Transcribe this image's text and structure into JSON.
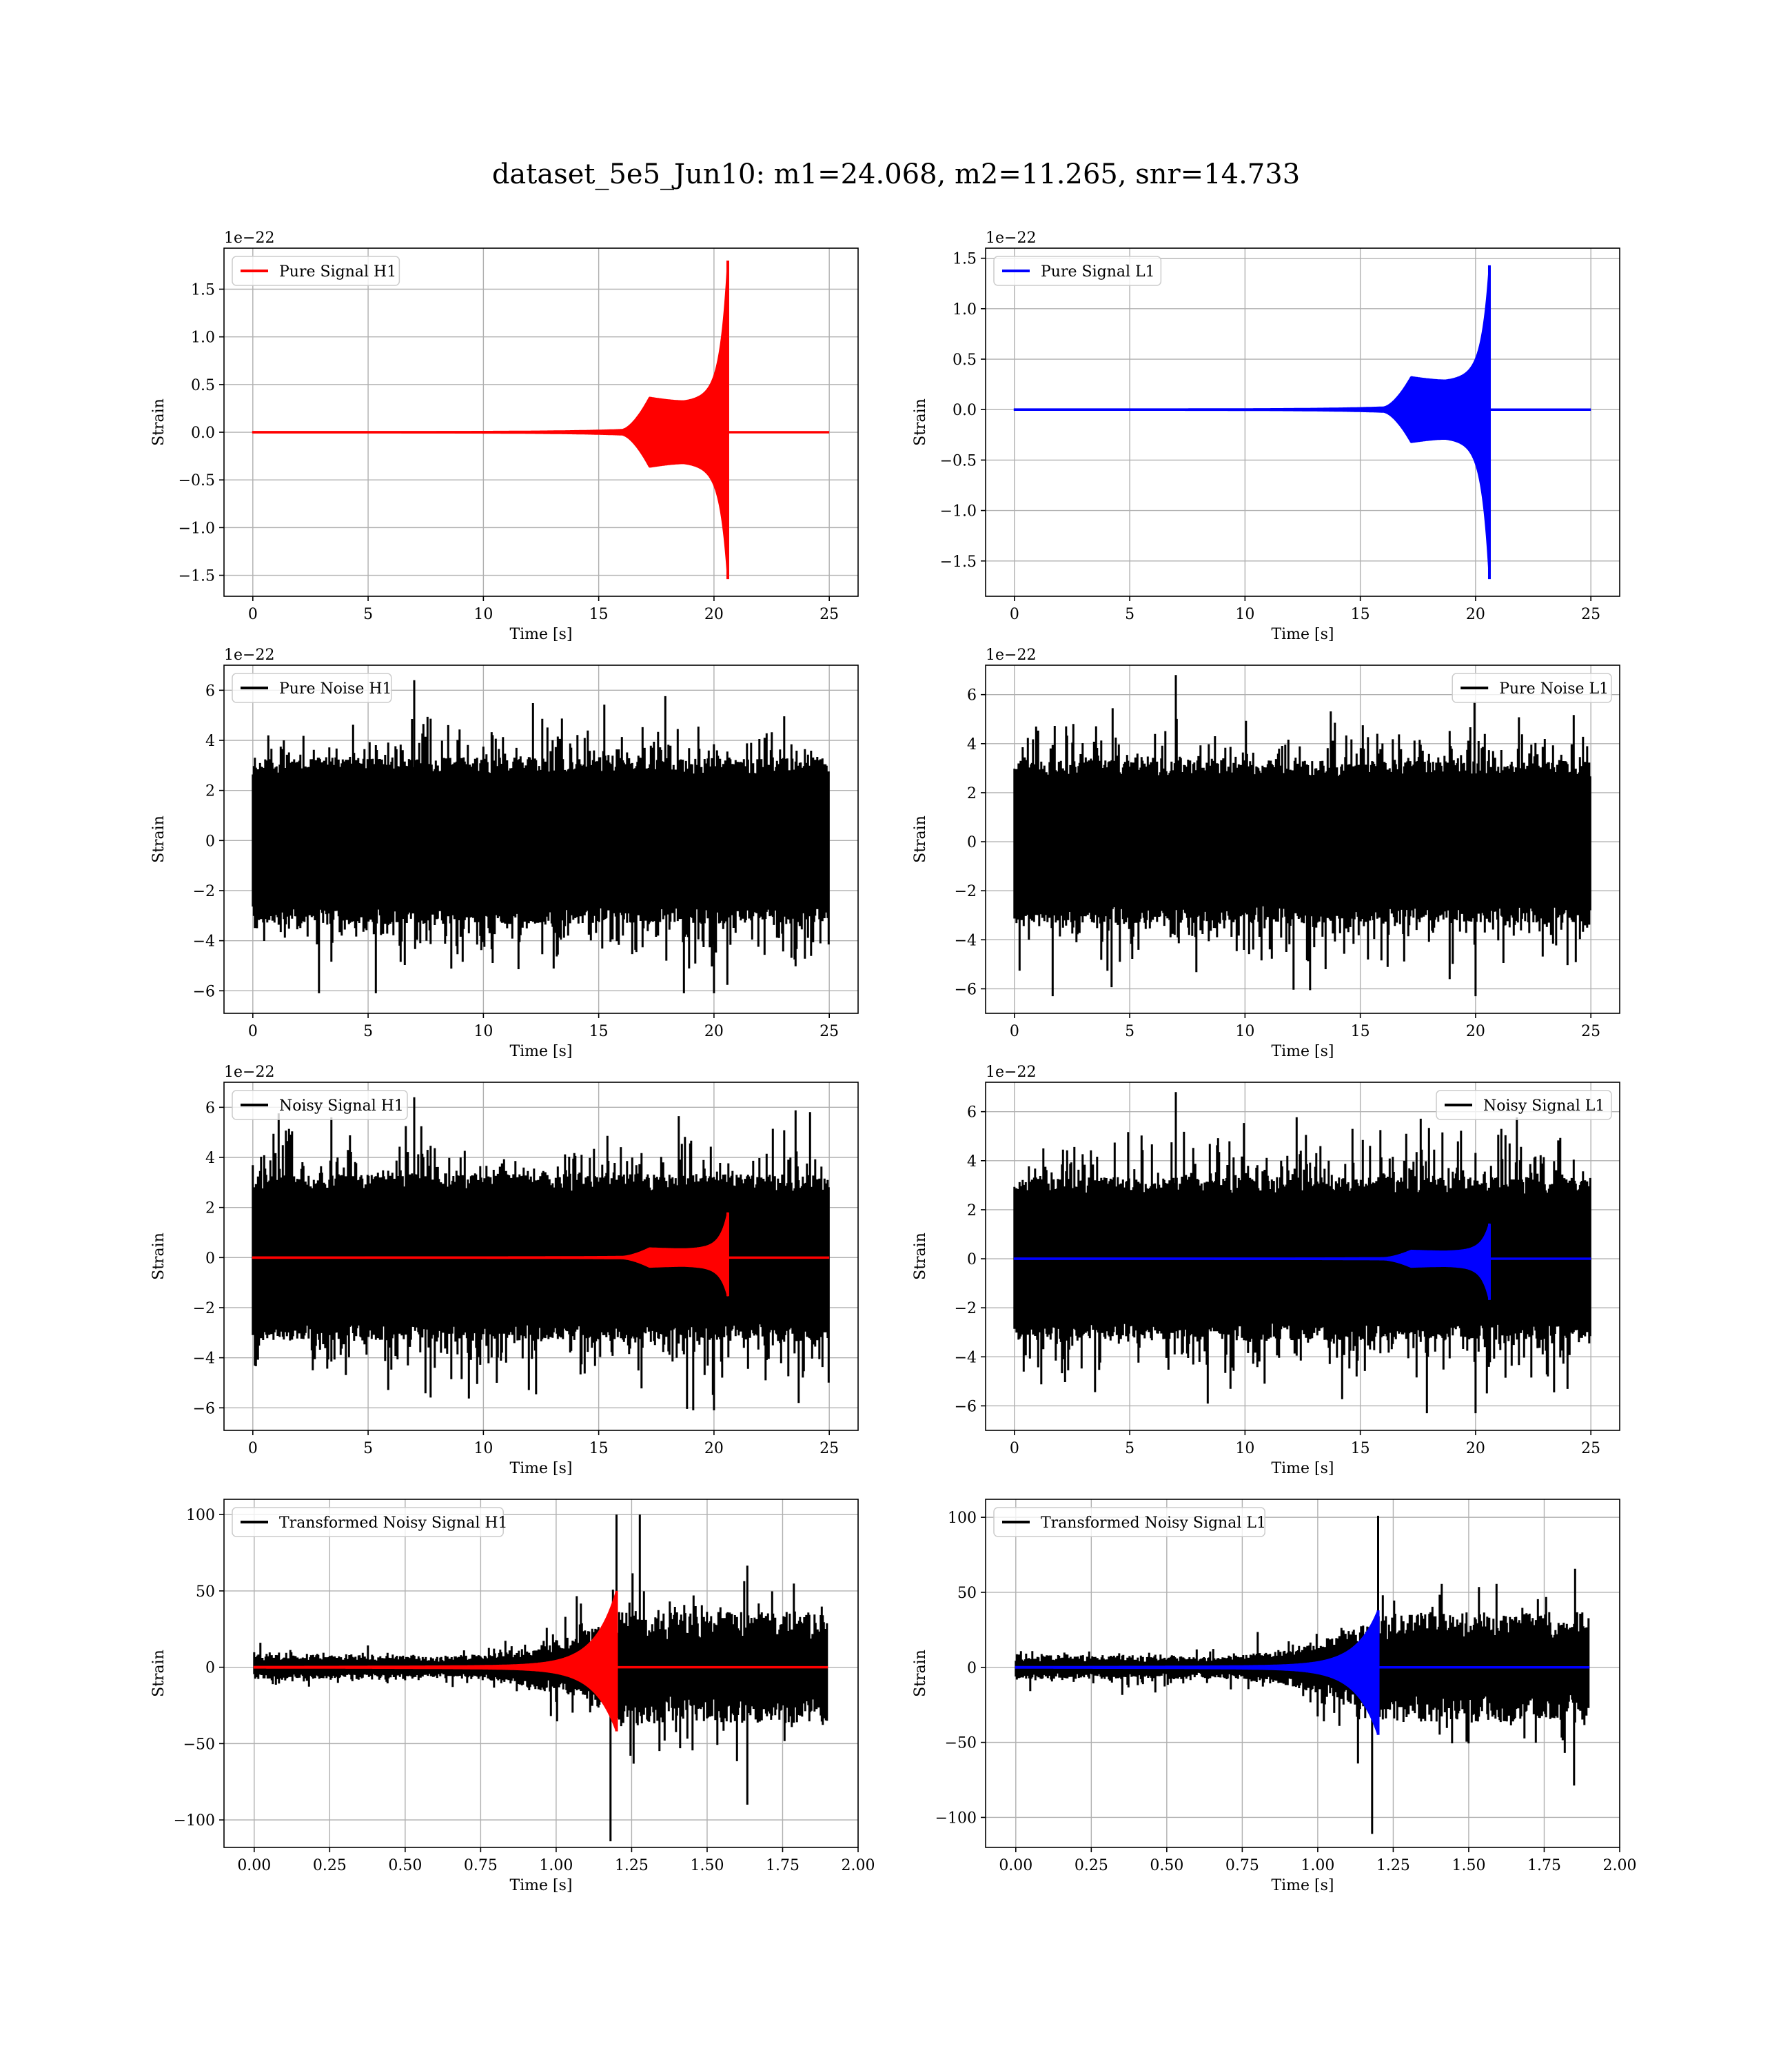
{
  "figure": {
    "title": "dataset_5e5_Jun10: m1=24.068, m2=11.265, snr=14.733"
  },
  "colors": {
    "h1_signal": "#ff0000",
    "l1_signal": "#0000ff",
    "noise": "#000000"
  },
  "chart_data": [
    {
      "type": "line",
      "id": "pure-signal-h1",
      "xlabel": "Time [s]",
      "ylabel": "Strain",
      "offset_label": "1e−22",
      "xlim": [
        -1.25,
        26.25
      ],
      "ylim": [
        -1.72,
        1.93
      ],
      "xticks": [
        0,
        5,
        10,
        15,
        20,
        25
      ],
      "xtick_labels": [
        "0",
        "5",
        "10",
        "15",
        "20",
        "25"
      ],
      "yticks": [
        -1.5,
        -1.0,
        -0.5,
        0.0,
        0.5,
        1.0,
        1.5
      ],
      "ytick_labels": [
        "−1.5",
        "−1.0",
        "−0.5",
        "0.0",
        "0.5",
        "1.0",
        "1.5"
      ],
      "legend": {
        "loc": "upper left",
        "entries": [
          {
            "label": "Pure Signal H1",
            "color": "#ff0000"
          }
        ]
      },
      "series": [
        {
          "name": "Pure Signal H1",
          "color": "#ff0000",
          "kind": "chirp",
          "t_start": 0,
          "t_end": 25,
          "t_merge": 20.6,
          "peak_pos": 1.8,
          "peak_neg": -1.54,
          "plateau": 0.36,
          "plateau_start": 17.2
        }
      ]
    },
    {
      "type": "line",
      "id": "pure-signal-l1",
      "xlabel": "Time [s]",
      "ylabel": "Strain",
      "offset_label": "1e−22",
      "xlim": [
        -1.25,
        26.25
      ],
      "ylim": [
        -1.85,
        1.6
      ],
      "xticks": [
        0,
        5,
        10,
        15,
        20,
        25
      ],
      "xtick_labels": [
        "0",
        "5",
        "10",
        "15",
        "20",
        "25"
      ],
      "yticks": [
        -1.5,
        -1.0,
        -0.5,
        0.0,
        0.5,
        1.0,
        1.5
      ],
      "ytick_labels": [
        "−1.5",
        "−1.0",
        "−0.5",
        "0.0",
        "0.5",
        "1.0",
        "1.5"
      ],
      "legend": {
        "loc": "upper left",
        "entries": [
          {
            "label": "Pure Signal L1",
            "color": "#0000ff"
          }
        ]
      },
      "series": [
        {
          "name": "Pure Signal L1",
          "color": "#0000ff",
          "kind": "chirp",
          "t_start": 0,
          "t_end": 25,
          "t_merge": 20.6,
          "peak_pos": 1.43,
          "peak_neg": -1.68,
          "plateau": 0.32,
          "plateau_start": 17.2
        }
      ]
    },
    {
      "type": "line",
      "id": "pure-noise-h1",
      "xlabel": "Time [s]",
      "ylabel": "Strain",
      "offset_label": "1e−22",
      "xlim": [
        -1.25,
        26.25
      ],
      "ylim": [
        -6.9,
        7.0
      ],
      "xticks": [
        0,
        5,
        10,
        15,
        20,
        25
      ],
      "xtick_labels": [
        "0",
        "5",
        "10",
        "15",
        "20",
        "25"
      ],
      "yticks": [
        -6,
        -4,
        -2,
        0,
        2,
        4,
        6
      ],
      "ytick_labels": [
        "−6",
        "−4",
        "−2",
        "0",
        "2",
        "4",
        "6"
      ],
      "legend": {
        "loc": "upper left",
        "entries": [
          {
            "label": "Pure Noise H1",
            "color": "#000000"
          }
        ]
      },
      "series": [
        {
          "name": "Pure Noise H1",
          "color": "#000000",
          "kind": "noise",
          "t_start": 0,
          "t_end": 25,
          "max": 6.4,
          "min": -6.1,
          "band": 3.2
        }
      ]
    },
    {
      "type": "line",
      "id": "pure-noise-l1",
      "xlabel": "Time [s]",
      "ylabel": "Strain",
      "offset_label": "1e−22",
      "xlim": [
        -1.25,
        26.25
      ],
      "ylim": [
        -7.0,
        7.2
      ],
      "xticks": [
        0,
        5,
        10,
        15,
        20,
        25
      ],
      "xtick_labels": [
        "0",
        "5",
        "10",
        "15",
        "20",
        "25"
      ],
      "yticks": [
        -6,
        -4,
        -2,
        0,
        2,
        4,
        6
      ],
      "ytick_labels": [
        "−6",
        "−4",
        "−2",
        "0",
        "2",
        "4",
        "6"
      ],
      "legend": {
        "loc": "upper right",
        "entries": [
          {
            "label": "Pure Noise L1",
            "color": "#000000"
          }
        ]
      },
      "series": [
        {
          "name": "Pure Noise L1",
          "color": "#000000",
          "kind": "noise",
          "t_start": 0,
          "t_end": 25,
          "max": 6.8,
          "min": -6.3,
          "band": 3.2
        }
      ]
    },
    {
      "type": "line",
      "id": "noisy-signal-h1",
      "xlabel": "Time [s]",
      "ylabel": "Strain",
      "offset_label": "1e−22",
      "xlim": [
        -1.25,
        26.25
      ],
      "ylim": [
        -6.9,
        7.0
      ],
      "xticks": [
        0,
        5,
        10,
        15,
        20,
        25
      ],
      "xtick_labels": [
        "0",
        "5",
        "10",
        "15",
        "20",
        "25"
      ],
      "yticks": [
        -6,
        -4,
        -2,
        0,
        2,
        4,
        6
      ],
      "ytick_labels": [
        "−6",
        "−4",
        "−2",
        "0",
        "2",
        "4",
        "6"
      ],
      "legend": {
        "loc": "upper left",
        "entries": [
          {
            "label": "Noisy Signal H1",
            "color": "#000000"
          }
        ]
      },
      "series": [
        {
          "name": "Noisy Signal H1",
          "color": "#000000",
          "kind": "noise",
          "t_start": 0,
          "t_end": 25,
          "max": 6.4,
          "min": -6.1,
          "band": 3.2
        },
        {
          "color": "#ff0000",
          "kind": "chirp",
          "t_start": 0,
          "t_end": 25,
          "t_merge": 20.6,
          "peak_pos": 1.8,
          "peak_neg": -1.54,
          "plateau": 0.36,
          "plateau_start": 17.2
        }
      ]
    },
    {
      "type": "line",
      "id": "noisy-signal-l1",
      "xlabel": "Time [s]",
      "ylabel": "Strain",
      "offset_label": "1e−22",
      "xlim": [
        -1.25,
        26.25
      ],
      "ylim": [
        -7.0,
        7.2
      ],
      "xticks": [
        0,
        5,
        10,
        15,
        20,
        25
      ],
      "xtick_labels": [
        "0",
        "5",
        "10",
        "15",
        "20",
        "25"
      ],
      "yticks": [
        -6,
        -4,
        -2,
        0,
        2,
        4,
        6
      ],
      "ytick_labels": [
        "−6",
        "−4",
        "−2",
        "0",
        "2",
        "4",
        "6"
      ],
      "legend": {
        "loc": "upper right",
        "entries": [
          {
            "label": "Noisy Signal L1",
            "color": "#000000"
          }
        ]
      },
      "series": [
        {
          "name": "Noisy Signal L1",
          "color": "#000000",
          "kind": "noise",
          "t_start": 0,
          "t_end": 25,
          "max": 6.8,
          "min": -6.3,
          "band": 3.2
        },
        {
          "color": "#0000ff",
          "kind": "chirp",
          "t_start": 0,
          "t_end": 25,
          "t_merge": 20.6,
          "peak_pos": 1.43,
          "peak_neg": -1.68,
          "plateau": 0.32,
          "plateau_start": 17.2
        }
      ]
    },
    {
      "type": "line",
      "id": "transformed-noisy-signal-h1",
      "xlabel": "Time [s]",
      "ylabel": "Strain",
      "offset_label": "",
      "xlim": [
        -0.1,
        2.0
      ],
      "ylim": [
        -118,
        110
      ],
      "xticks": [
        0.0,
        0.25,
        0.5,
        0.75,
        1.0,
        1.25,
        1.5,
        1.75,
        2.0
      ],
      "xtick_labels": [
        "0.00",
        "0.25",
        "0.50",
        "0.75",
        "1.00",
        "1.25",
        "1.50",
        "1.75",
        "2.00"
      ],
      "yticks": [
        -100,
        -50,
        0,
        50,
        100
      ],
      "ytick_labels": [
        "−100",
        "−50",
        "0",
        "50",
        "100"
      ],
      "legend": {
        "loc": "upper left",
        "entries": [
          {
            "label": "Transformed Noisy Signal H1",
            "color": "#000000"
          }
        ]
      },
      "series": [
        {
          "name": "Transformed Noisy Signal H1",
          "color": "#000000",
          "kind": "tnoise",
          "t_start": 0,
          "t_end": 1.9,
          "t_merge": 1.2,
          "max": 100,
          "min": -114
        },
        {
          "color": "#ff0000",
          "kind": "tchirp",
          "t_start": 0,
          "t_end": 1.9,
          "t_merge": 1.2,
          "peak_pos": 50,
          "peak_neg": -42
        }
      ]
    },
    {
      "type": "line",
      "id": "transformed-noisy-signal-l1",
      "xlabel": "Time [s]",
      "ylabel": "Strain",
      "offset_label": "",
      "xlim": [
        -0.1,
        2.0
      ],
      "ylim": [
        -120,
        112
      ],
      "xticks": [
        0.0,
        0.25,
        0.5,
        0.75,
        1.0,
        1.25,
        1.5,
        1.75,
        2.0
      ],
      "xtick_labels": [
        "0.00",
        "0.25",
        "0.50",
        "0.75",
        "1.00",
        "1.25",
        "1.50",
        "1.75",
        "2.00"
      ],
      "yticks": [
        -100,
        -50,
        0,
        50,
        100
      ],
      "ytick_labels": [
        "−100",
        "−50",
        "0",
        "50",
        "100"
      ],
      "legend": {
        "loc": "upper left",
        "entries": [
          {
            "label": "Transformed Noisy Signal L1",
            "color": "#000000"
          }
        ]
      },
      "series": [
        {
          "name": "Transformed Noisy Signal L1",
          "color": "#000000",
          "kind": "tnoise",
          "t_start": 0,
          "t_end": 1.9,
          "t_merge": 1.2,
          "max": 101,
          "min": -111
        },
        {
          "color": "#0000ff",
          "kind": "tchirp",
          "t_start": 0,
          "t_end": 1.9,
          "t_merge": 1.2,
          "peak_pos": 38,
          "peak_neg": -45
        }
      ]
    }
  ]
}
